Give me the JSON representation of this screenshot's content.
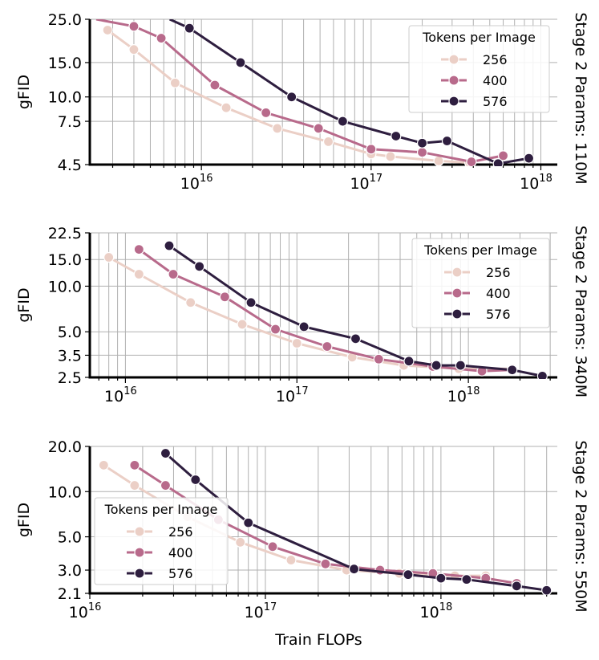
{
  "chart_data": [
    {
      "type": "line",
      "side_label": "Stage 2 Params: 110M",
      "ylabel": "gFID",
      "xlabel": "",
      "x_scale": "log",
      "y_scale": "log",
      "xlim": [
        2200000000000000.0,
        1.25e+18
      ],
      "ylim": [
        4.5,
        25.0
      ],
      "yticks": [
        {
          "v": 4.5,
          "label": "4.5"
        },
        {
          "v": 7.5,
          "label": "7.5"
        },
        {
          "v": 10.0,
          "label": "10.0"
        },
        {
          "v": 15.0,
          "label": "15.0"
        },
        {
          "v": 25.0,
          "label": "25.0"
        }
      ],
      "xticks": [
        {
          "exp": 16,
          "base": "10",
          "sup": "16"
        },
        {
          "exp": 17,
          "base": "10",
          "sup": "17"
        },
        {
          "exp": 18,
          "base": "10",
          "sup": "18"
        }
      ],
      "grid": true,
      "legend": {
        "title": "Tokens per Image",
        "placement": "upper-right"
      },
      "series": [
        {
          "name": "256",
          "color": "#ebcfc6",
          "x": [
            2800000000000000.0,
            4000000000000000.0,
            7000000000000000.0,
            1.4e+16,
            2.8e+16,
            5.6e+16,
            1e+17,
            1.3e+17,
            2.5e+17,
            3.8e+17
          ],
          "y": [
            22.0,
            17.5,
            11.8,
            8.8,
            6.9,
            5.9,
            5.1,
            4.95,
            4.7,
            4.6
          ]
        },
        {
          "name": "400",
          "color": "#b86a8b",
          "x": [
            4000000000000000.0,
            5800000000000000.0,
            1.2e+16,
            2.4e+16,
            4.9e+16,
            1e+17,
            2e+17,
            3.9e+17,
            6e+17
          ],
          "y": [
            23.0,
            20.0,
            11.5,
            8.3,
            6.9,
            5.4,
            5.2,
            4.65,
            5.0
          ],
          "x_prefix": [
            2400000000000000.0
          ],
          "y_prefix": [
            25.0
          ]
        },
        {
          "name": "576",
          "color": "#2e1e3f",
          "x": [
            8500000000000000.0,
            1.7e+16,
            3.4e+16,
            6.8e+16,
            1.4e+17,
            2e+17,
            2.8e+17,
            5.6e+17,
            8.5e+17
          ],
          "y": [
            22.5,
            15.0,
            10.0,
            7.5,
            6.3,
            5.8,
            5.95,
            4.55,
            4.85
          ],
          "x_prefix": [
            6500000000000000.0
          ],
          "y_prefix": [
            25.0
          ]
        }
      ]
    },
    {
      "type": "line",
      "side_label": "Stage 2 Params: 340M",
      "ylabel": "gFID",
      "xlabel": "",
      "x_scale": "log",
      "y_scale": "log",
      "xlim": [
        6200000000000000.0,
        3.3e+18
      ],
      "ylim": [
        2.5,
        22.5
      ],
      "yticks": [
        {
          "v": 2.5,
          "label": "2.5"
        },
        {
          "v": 3.5,
          "label": "3.5"
        },
        {
          "v": 5.0,
          "label": "5.0"
        },
        {
          "v": 10.0,
          "label": "10.0"
        },
        {
          "v": 15.0,
          "label": "15.0"
        },
        {
          "v": 22.5,
          "label": "22.5"
        }
      ],
      "xticks": [
        {
          "exp": 16,
          "base": "10",
          "sup": "16"
        },
        {
          "exp": 17,
          "base": "10",
          "sup": "17"
        },
        {
          "exp": 18,
          "base": "10",
          "sup": "18"
        }
      ],
      "grid": true,
      "legend": {
        "title": "Tokens per Image",
        "placement": "upper-right"
      },
      "series": [
        {
          "name": "256",
          "color": "#ebcfc6",
          "x": [
            8000000000000000.0,
            1.2e+16,
            2.4e+16,
            4.8e+16,
            1e+17,
            2.1e+17,
            4.2e+17,
            8.8e+17,
            1.8e+18
          ],
          "y": [
            15.5,
            12.0,
            7.8,
            5.6,
            4.2,
            3.4,
            3.0,
            2.85,
            2.85
          ]
        },
        {
          "name": "400",
          "color": "#b86a8b",
          "x": [
            1.2e+16,
            1.9e+16,
            3.8e+16,
            7.5e+16,
            1.5e+17,
            3e+17,
            6.2e+17,
            1.2e+18,
            1.8e+18
          ],
          "y": [
            17.5,
            12.0,
            8.5,
            5.2,
            4.0,
            3.3,
            2.95,
            2.75,
            2.8
          ]
        },
        {
          "name": "576",
          "color": "#2e1e3f",
          "x": [
            1.8e+16,
            2.7e+16,
            5.4e+16,
            1.1e+17,
            2.2e+17,
            4.5e+17,
            6.5e+17,
            9e+17,
            1.8e+18,
            2.7e+18
          ],
          "y": [
            18.5,
            13.5,
            7.8,
            5.4,
            4.5,
            3.2,
            3.0,
            3.0,
            2.8,
            2.55
          ]
        }
      ]
    },
    {
      "type": "line",
      "side_label": "Stage 2 Params: 550M",
      "ylabel": "gFID",
      "xlabel": "Train FLOPs",
      "x_scale": "log",
      "y_scale": "log",
      "xlim": [
        1e+16,
        4.6e+18
      ],
      "ylim": [
        2.1,
        20.0
      ],
      "yticks": [
        {
          "v": 2.1,
          "label": "2.1"
        },
        {
          "v": 3.0,
          "label": "3.0"
        },
        {
          "v": 5.0,
          "label": "5.0"
        },
        {
          "v": 10.0,
          "label": "10.0"
        },
        {
          "v": 20.0,
          "label": "20.0"
        }
      ],
      "xticks": [
        {
          "exp": 16,
          "base": "10",
          "sup": "16"
        },
        {
          "exp": 17,
          "base": "10",
          "sup": "17"
        },
        {
          "exp": 18,
          "base": "10",
          "sup": "18"
        }
      ],
      "grid": true,
      "legend": {
        "title": "Tokens per Image",
        "placement": "lower-left"
      },
      "series": [
        {
          "name": "256",
          "color": "#ebcfc6",
          "x": [
            1.2e+16,
            1.8e+16,
            3.6e+16,
            7.2e+16,
            1.4e+17,
            2.9e+17,
            5.8e+17,
            1.2e+18,
            1.8e+18
          ],
          "y": [
            15.0,
            11.0,
            6.8,
            4.6,
            3.5,
            3.0,
            2.85,
            2.75,
            2.75
          ]
        },
        {
          "name": "400",
          "color": "#b86a8b",
          "x": [
            1.8e+16,
            2.7e+16,
            5.4e+16,
            1.1e+17,
            2.2e+17,
            4.5e+17,
            9e+17,
            1.8e+18,
            2.7e+18
          ],
          "y": [
            15.0,
            11.0,
            6.5,
            4.3,
            3.3,
            3.0,
            2.85,
            2.65,
            2.45
          ]
        },
        {
          "name": "576",
          "color": "#2e1e3f",
          "x": [
            2.7e+16,
            4e+16,
            8e+16,
            3.2e+17,
            6.5e+17,
            1e+18,
            1.4e+18,
            2.7e+18,
            4e+18
          ],
          "y": [
            18.0,
            12.0,
            6.2,
            3.05,
            2.8,
            2.65,
            2.6,
            2.35,
            2.2
          ]
        }
      ]
    }
  ]
}
